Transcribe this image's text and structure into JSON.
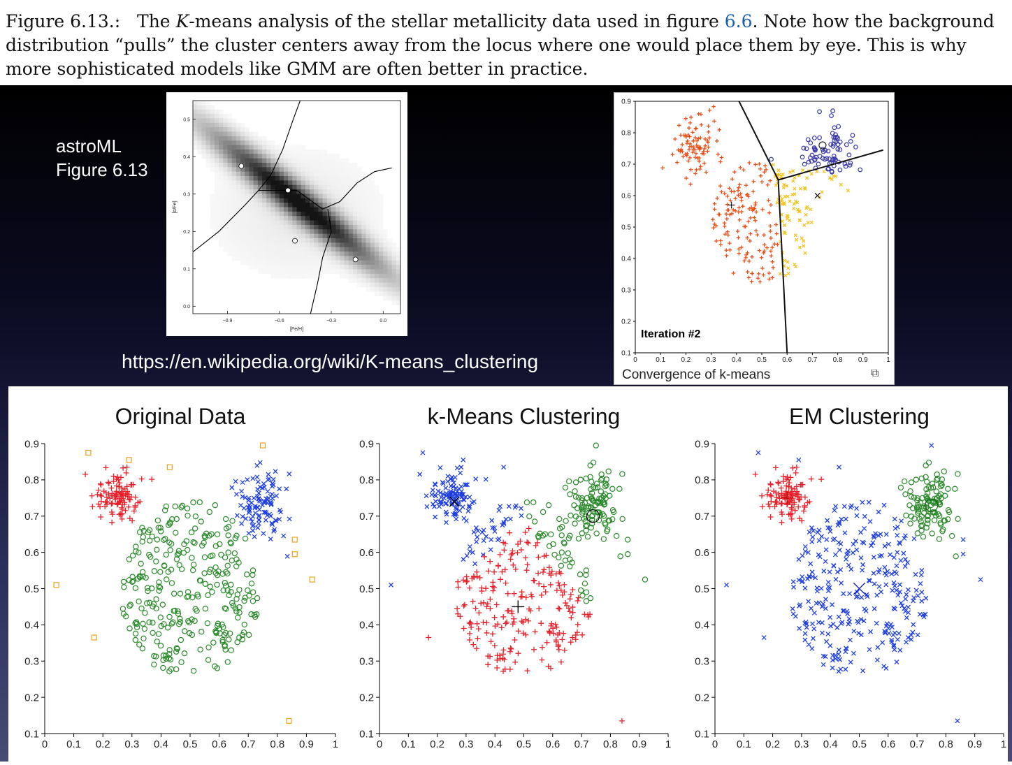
{
  "caption": {
    "prefix": "Figure 6.13.:",
    "text_before_k": "The",
    "k_symbol": "K",
    "text_after_k": "-means analysis of the stellar metallicity data used in figure",
    "figure_ref": "6.6",
    "text_rest": ". Note how the background distribution “pulls” the cluster centers away from the locus where one would place them by eye. This is why more sophisticated models like GMM are often better in practice."
  },
  "slide": {
    "astroml_line1": "astroML",
    "astroml_line2": "Figure 6.13",
    "wiki_url": "https://en.wikipedia.org/wiki/K-means_clustering",
    "convergence_caption": "Convergence of k-means",
    "expand_icon": "expand-icon"
  },
  "colors": {
    "red": "#e8202a",
    "green": "#2a8a2a",
    "blue": "#1f3fe0",
    "orange": "#f0a020",
    "kred": "#e8501a",
    "kyellow": "#f4c21a",
    "kblue": "#3a3aa8"
  },
  "chart_data": [
    {
      "id": "astroml",
      "type": "heatmap",
      "xlabel": "[Fe/H]",
      "ylabel": "[α/Fe]",
      "x_ticks": [
        "−0.9",
        "−0.6",
        "−0.3",
        "0.0"
      ],
      "y_ticks": [
        "0.0",
        "0.1",
        "0.2",
        "0.3",
        "0.4",
        "0.5"
      ],
      "xlim": [
        -1.1,
        0.1
      ],
      "ylim": [
        -0.02,
        0.55
      ],
      "centers": [
        [
          -0.82,
          0.375
        ],
        [
          -0.55,
          0.31
        ],
        [
          -0.51,
          0.175
        ],
        [
          -0.16,
          0.125
        ]
      ]
    },
    {
      "id": "convergence",
      "type": "scatter",
      "annotation": "Iteration #2",
      "x_ticks": [
        "0",
        "0.1",
        "0.2",
        "0.3",
        "0.4",
        "0.5",
        "0.6",
        "0.7",
        "0.8",
        "0.9",
        "1"
      ],
      "y_ticks": [
        "0.1",
        "0.2",
        "0.3",
        "0.4",
        "0.5",
        "0.6",
        "0.7",
        "0.8",
        "0.9"
      ],
      "xlim": [
        0,
        1
      ],
      "ylim": [
        0.1,
        0.9
      ],
      "centers": [
        [
          0.38,
          0.57
        ],
        [
          0.72,
          0.6
        ],
        [
          0.74,
          0.76
        ]
      ]
    },
    {
      "id": "original",
      "type": "scatter",
      "title": "Original Data",
      "x_ticks": [
        "0",
        "0.1",
        "0.2",
        "0.3",
        "0.4",
        "0.5",
        "0.6",
        "0.7",
        "0.8",
        "0.9",
        "1"
      ],
      "y_ticks": [
        "0.1",
        "0.2",
        "0.3",
        "0.4",
        "0.5",
        "0.6",
        "0.7",
        "0.8",
        "0.9"
      ],
      "xlim": [
        0,
        1
      ],
      "ylim": [
        0.1,
        0.9
      ],
      "noise_points": [
        [
          0.04,
          0.51
        ],
        [
          0.15,
          0.875
        ],
        [
          0.29,
          0.855
        ],
        [
          0.43,
          0.835
        ],
        [
          0.75,
          0.895
        ],
        [
          0.86,
          0.635
        ],
        [
          0.86,
          0.595
        ],
        [
          0.92,
          0.525
        ],
        [
          0.17,
          0.365
        ],
        [
          0.84,
          0.135
        ]
      ]
    },
    {
      "id": "kmeans",
      "type": "scatter",
      "title": "k-Means Clustering",
      "x_ticks": [
        "0",
        "0.1",
        "0.2",
        "0.3",
        "0.4",
        "0.5",
        "0.6",
        "0.7",
        "0.8",
        "0.9",
        "1"
      ],
      "y_ticks": [
        "0.1",
        "0.2",
        "0.3",
        "0.4",
        "0.5",
        "0.6",
        "0.7",
        "0.8",
        "0.9"
      ],
      "xlim": [
        0,
        1
      ],
      "ylim": [
        0.1,
        0.9
      ],
      "centers": [
        [
          0.26,
          0.74
        ],
        [
          0.48,
          0.45
        ],
        [
          0.74,
          0.7
        ]
      ]
    },
    {
      "id": "em",
      "type": "scatter",
      "title": "EM Clustering",
      "x_ticks": [
        "0",
        "0.1",
        "0.2",
        "0.3",
        "0.4",
        "0.5",
        "0.6",
        "0.7",
        "0.8",
        "0.9",
        "1"
      ],
      "y_ticks": [
        "0.1",
        "0.2",
        "0.3",
        "0.4",
        "0.5",
        "0.6",
        "0.7",
        "0.8",
        "0.9"
      ],
      "xlim": [
        0,
        1
      ],
      "ylim": [
        0.1,
        0.9
      ],
      "centers": [
        [
          0.25,
          0.75
        ],
        [
          0.5,
          0.5
        ],
        [
          0.75,
          0.73
        ]
      ]
    }
  ]
}
